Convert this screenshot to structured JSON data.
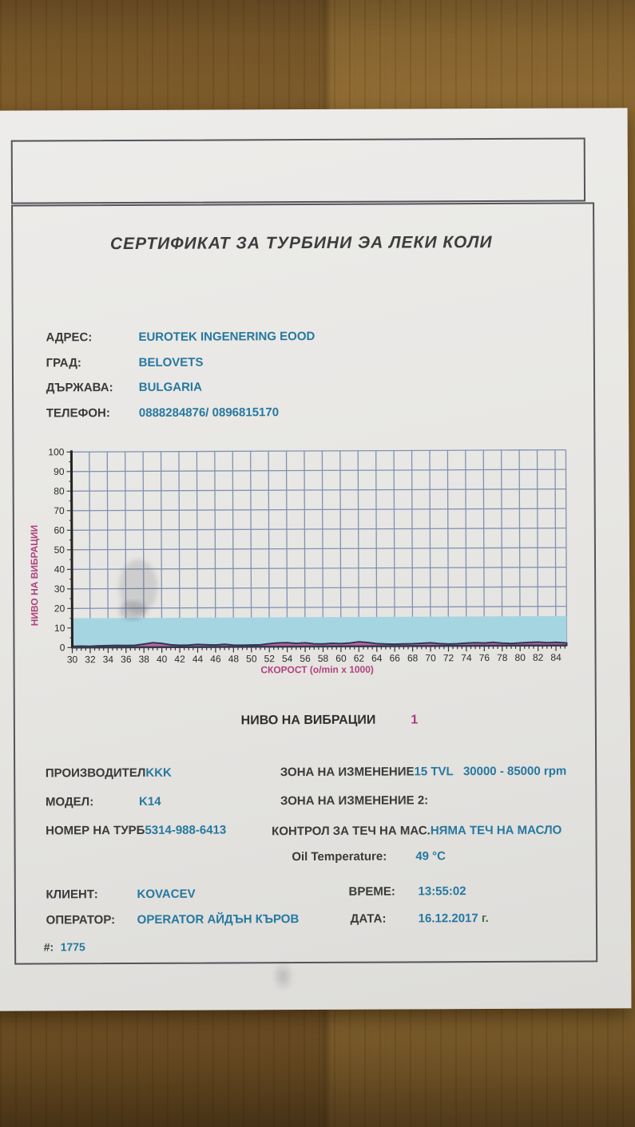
{
  "certificate": {
    "title": "СЕРТИФИКАТ ЗА ТУРБИНИ ЭА ЛЕКИ КОЛИ",
    "address": {
      "label": "АДРЕС:",
      "value": "EUROTEK INGENERING EOOD"
    },
    "city": {
      "label": "ГРАД:",
      "value": "BELOVETS"
    },
    "country": {
      "label": "ДЪРЖАВА:",
      "value": "BULGARIA"
    },
    "phone": {
      "label": "ТЕЛЕФОН:",
      "value": "0888284876/ 0896815170"
    },
    "section": {
      "label": "НИВО НА ВИБРАЦИИ",
      "value": "1"
    },
    "manufacturer": {
      "label": "ПРОИЗВОДИТЕЛ",
      "value": "KKK"
    },
    "model": {
      "label": "МОДЕЛ:",
      "value": "K14"
    },
    "turbo_number": {
      "label": "НОМЕР НА ТУРБ",
      "value": "5314-988-6413"
    },
    "zone1": {
      "label": "ЗОНА НА ИЗМЕНЕНИЕ",
      "value": "15 TVL   30000 - 85000 rpm"
    },
    "zone2": {
      "label": "ЗОНА НА ИЗМЕНЕНИЕ 2:",
      "value": ""
    },
    "oil_leak": {
      "label": "КОНТРОЛ ЗА ТЕЧ НА МАС.",
      "value": "НЯМА ТЕЧ НА МАСЛО"
    },
    "oil_temp": {
      "label": "Oil Temperature:",
      "value": "49 °C"
    },
    "client": {
      "label": "КЛИЕНТ:",
      "value": "KOVACEV"
    },
    "time": {
      "label": "ВРЕМЕ:",
      "value": "13:55:02"
    },
    "operator": {
      "label": "ОПЕРАТОР:",
      "value": "OPERATOR АЙДЪН КЪРОВ"
    },
    "date": {
      "label": "ДАТА:",
      "value": "16.12.2017",
      "suffix": " г."
    },
    "serial": {
      "label": "#:",
      "value": "1775"
    }
  },
  "colors": {
    "value_teal": "#27789f",
    "label_dark": "#3a3a3a",
    "accent_magenta": "#a83c7e"
  },
  "chart_data": {
    "type": "area",
    "title": "",
    "xlabel": "СКОРОСТ (o/min x 1000)",
    "ylabel": "НИВО НА ВИБРАЦИИ",
    "xlim": [
      30,
      85.2
    ],
    "ylim": [
      0,
      100
    ],
    "x_ticks": [
      30,
      32,
      34,
      36,
      38,
      40,
      42,
      44,
      46,
      48,
      50,
      52,
      54,
      56,
      58,
      60,
      62,
      64,
      66,
      68,
      70,
      72,
      74,
      76,
      78,
      80,
      82,
      84
    ],
    "y_ticks": [
      0,
      10,
      20,
      30,
      40,
      50,
      60,
      70,
      80,
      90,
      100
    ],
    "grid": true,
    "legend": "none",
    "threshold_band": {
      "from": 0,
      "to": 15
    },
    "series": [
      {
        "name": "vibration-level",
        "x": [
          30,
          31,
          32,
          33,
          34,
          35,
          36,
          37,
          38,
          39,
          40,
          41,
          42,
          43,
          44,
          45,
          46,
          47,
          48,
          49,
          50,
          51,
          52,
          53,
          54,
          55,
          56,
          57,
          58,
          59,
          60,
          61,
          62,
          63,
          64,
          65,
          66,
          67,
          68,
          69,
          70,
          71,
          72,
          73,
          74,
          75,
          76,
          77,
          78,
          79,
          80,
          81,
          82,
          83,
          84,
          85,
          85.2
        ],
        "values": [
          0.6,
          0.7,
          0.6,
          0.8,
          0.9,
          1.0,
          0.9,
          1.0,
          1.6,
          2.3,
          1.9,
          1.2,
          0.9,
          1.0,
          1.3,
          1.1,
          1.0,
          1.3,
          0.9,
          0.8,
          0.9,
          1.0,
          1.5,
          1.9,
          2.0,
          1.6,
          1.9,
          1.4,
          1.3,
          1.6,
          1.4,
          1.7,
          2.3,
          1.9,
          1.3,
          1.1,
          1.0,
          1.1,
          1.2,
          1.4,
          1.6,
          1.2,
          1.0,
          1.1,
          1.4,
          1.6,
          1.4,
          1.7,
          1.3,
          1.1,
          1.4,
          1.6,
          1.7,
          1.4,
          1.6,
          1.3,
          1.2
        ]
      }
    ],
    "colors": {
      "grid": "#8092b2",
      "band": "#a6d5e2",
      "axis": "#222222",
      "baseline": "#333a55",
      "trace_line": "#323750",
      "trace_fill": "#c0659e",
      "tick_label": "#2b2b2b",
      "axis_label": "#b2437f"
    }
  }
}
